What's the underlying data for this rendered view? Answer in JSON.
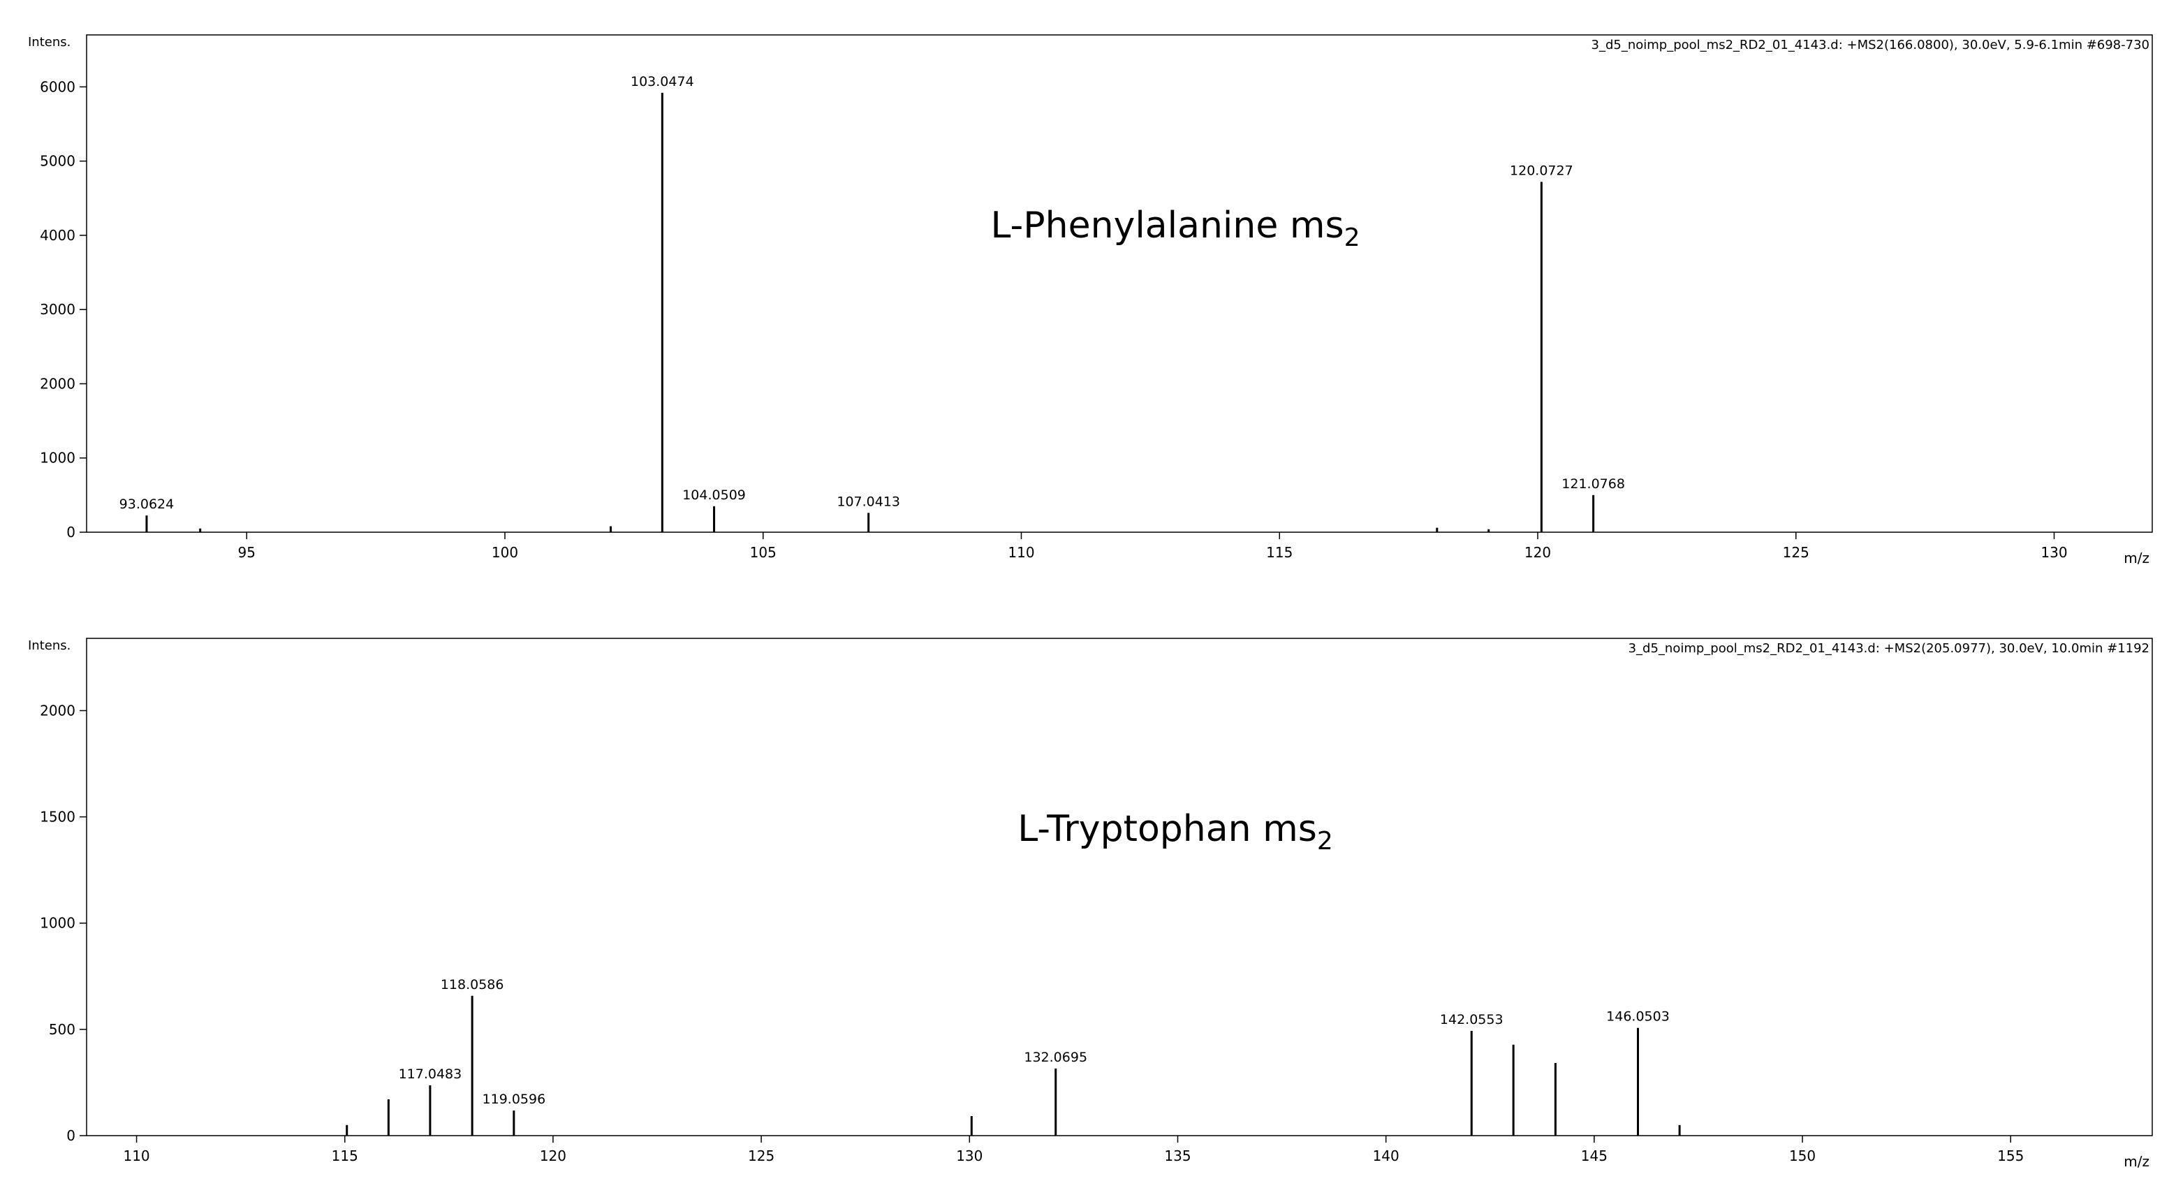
{
  "chart_data": [
    {
      "type": "spectrum",
      "title": "3_d5_noimp_pool_ms2_RD2_01_4143.d: +MS2(166.0800), 30.0eV, 5.9-6.1min #698-730",
      "y_label": "Intens.",
      "x_label": "m/z",
      "annotation": "L-Phenylalanine ms",
      "annotation_sub": "2",
      "color": "#000000",
      "xlim": [
        91.9,
        131.9
      ],
      "xticks": [
        95,
        100,
        105,
        110,
        115,
        120,
        125,
        130
      ],
      "ylim": [
        0,
        6700
      ],
      "yticks": [
        0,
        1000,
        2000,
        3000,
        4000,
        5000,
        6000
      ],
      "labeled_peaks": {
        "x": [
          93.0624,
          103.0474,
          104.0509,
          107.0413,
          120.0727,
          121.0768
        ],
        "values": [
          225,
          5920,
          350,
          260,
          4720,
          500
        ]
      },
      "minor_peaks": {
        "x": [
          94.1,
          102.05,
          118.05,
          119.05
        ],
        "values": [
          50,
          80,
          60,
          40
        ]
      }
    },
    {
      "type": "spectrum",
      "title": "3_d5_noimp_pool_ms2_RD2_01_4143.d: +MS2(205.0977), 30.0eV, 10.0min #1192",
      "y_label": "Intens.",
      "x_label": "m/z",
      "annotation": "L-Tryptophan ms",
      "annotation_sub": "2",
      "color": "#000000",
      "xlim": [
        108.8,
        158.4
      ],
      "xticks": [
        110,
        115,
        120,
        125,
        130,
        135,
        140,
        145,
        150,
        155
      ],
      "ylim": [
        0,
        2340
      ],
      "yticks": [
        0,
        500,
        1000,
        1500,
        2000
      ],
      "labeled_peaks": {
        "x": [
          117.0483,
          118.0586,
          119.0596,
          132.0695,
          142.0553,
          146.0503
        ],
        "values": [
          237,
          658,
          118,
          316,
          493,
          507
        ]
      },
      "minor_peaks": {
        "x": [
          115.05,
          116.05,
          130.05,
          143.06,
          144.07,
          147.05
        ],
        "values": [
          50,
          171,
          92,
          428,
          342,
          50
        ]
      }
    }
  ]
}
